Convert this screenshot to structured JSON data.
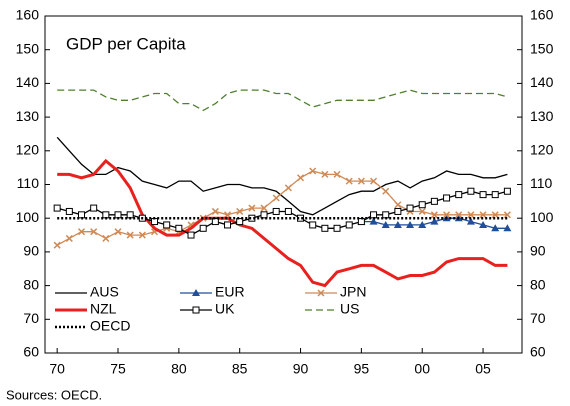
{
  "chart_data": {
    "type": "line",
    "title": "GDP per Capita",
    "source": "Sources: OECD.",
    "x": [
      1970,
      1971,
      1972,
      1973,
      1974,
      1975,
      1976,
      1977,
      1978,
      1979,
      1980,
      1981,
      1982,
      1983,
      1984,
      1985,
      1986,
      1987,
      1988,
      1989,
      1990,
      1991,
      1992,
      1993,
      1994,
      1995,
      1996,
      1997,
      1998,
      1999,
      2000,
      2001,
      2002,
      2003,
      2004,
      2005,
      2006,
      2007
    ],
    "xlim": [
      1969,
      2008.2
    ],
    "xticks": [
      {
        "value": 1970,
        "label": "70"
      },
      {
        "value": 1975,
        "label": "75"
      },
      {
        "value": 1980,
        "label": "80"
      },
      {
        "value": 1985,
        "label": "85"
      },
      {
        "value": 1990,
        "label": "90"
      },
      {
        "value": 1995,
        "label": "95"
      },
      {
        "value": 2000,
        "label": "00"
      },
      {
        "value": 2005,
        "label": "05"
      }
    ],
    "ylim": [
      60,
      160
    ],
    "yticks": [
      60,
      70,
      80,
      90,
      100,
      110,
      120,
      130,
      140,
      150,
      160
    ],
    "y2lim": [
      60,
      160
    ],
    "y2ticks": [
      60,
      70,
      80,
      90,
      100,
      110,
      120,
      130,
      140,
      150,
      160
    ],
    "legend": "lower-left",
    "series": [
      {
        "name": "AUS",
        "color": "#000000",
        "dash": "solid",
        "marker": "none",
        "values": [
          124,
          120,
          116,
          113,
          113,
          115,
          114,
          111,
          110,
          109,
          111,
          111,
          108,
          109,
          110,
          110,
          109,
          109,
          108,
          105,
          102,
          101,
          103,
          105,
          107,
          108,
          108,
          110,
          111,
          109,
          111,
          112,
          114,
          113,
          113,
          112,
          112,
          113
        ]
      },
      {
        "name": "EUR",
        "color": "#1f4e9a",
        "dash": "solid",
        "marker": "triangle",
        "values": [
          null,
          null,
          null,
          null,
          null,
          null,
          null,
          null,
          null,
          null,
          null,
          null,
          null,
          null,
          null,
          null,
          null,
          null,
          null,
          null,
          null,
          null,
          null,
          null,
          null,
          99,
          99,
          98,
          98,
          98,
          98,
          99,
          100,
          100,
          99,
          98,
          97,
          97
        ]
      },
      {
        "name": "JPN",
        "color": "#d08a55",
        "dash": "solid",
        "marker": "cross",
        "values": [
          92,
          94,
          96,
          96,
          94,
          96,
          95,
          95,
          96,
          97,
          96,
          98,
          100,
          102,
          101,
          102,
          103,
          103,
          106,
          109,
          112,
          114,
          113,
          113,
          111,
          111,
          111,
          108,
          104,
          102,
          102,
          101,
          101,
          101,
          101,
          101,
          101,
          101
        ]
      },
      {
        "name": "NZL",
        "color": "#e8201e",
        "dash": "solid",
        "marker": "none",
        "width": 3,
        "values": [
          113,
          113,
          112,
          113,
          117,
          114,
          109,
          101,
          97,
          95,
          95,
          97,
          100,
          100,
          100,
          98,
          97,
          94,
          91,
          88,
          86,
          81,
          80,
          84,
          85,
          86,
          86,
          84,
          82,
          83,
          83,
          84,
          87,
          88,
          88,
          88,
          86,
          86
        ]
      },
      {
        "name": "UK",
        "color": "#000000",
        "dash": "solid",
        "marker": "square",
        "values": [
          103,
          102,
          101,
          103,
          101,
          101,
          101,
          100,
          99,
          98,
          97,
          95,
          97,
          99,
          98,
          99,
          100,
          101,
          102,
          102,
          100,
          98,
          97,
          97,
          98,
          99,
          101,
          101,
          102,
          103,
          104,
          105,
          106,
          107,
          108,
          107,
          107,
          108
        ]
      },
      {
        "name": "US",
        "color": "#4f7f2f",
        "dash": "dash",
        "marker": "none",
        "values": [
          138,
          138,
          138,
          138,
          136,
          135,
          135,
          136,
          137,
          137,
          134,
          134,
          132,
          134,
          137,
          138,
          138,
          138,
          137,
          137,
          135,
          133,
          134,
          135,
          135,
          135,
          135,
          136,
          137,
          138,
          137,
          137,
          137,
          137,
          137,
          137,
          137,
          136
        ]
      },
      {
        "name": "OECD",
        "color": "#000000",
        "dash": "dot",
        "marker": "none",
        "width": 2.5,
        "values": [
          100,
          100,
          100,
          100,
          100,
          100,
          100,
          100,
          100,
          100,
          100,
          100,
          100,
          100,
          100,
          100,
          100,
          100,
          100,
          100,
          100,
          100,
          100,
          100,
          100,
          100,
          100,
          100,
          100,
          100,
          100,
          100,
          100,
          100,
          100,
          100,
          100,
          100
        ]
      }
    ]
  }
}
